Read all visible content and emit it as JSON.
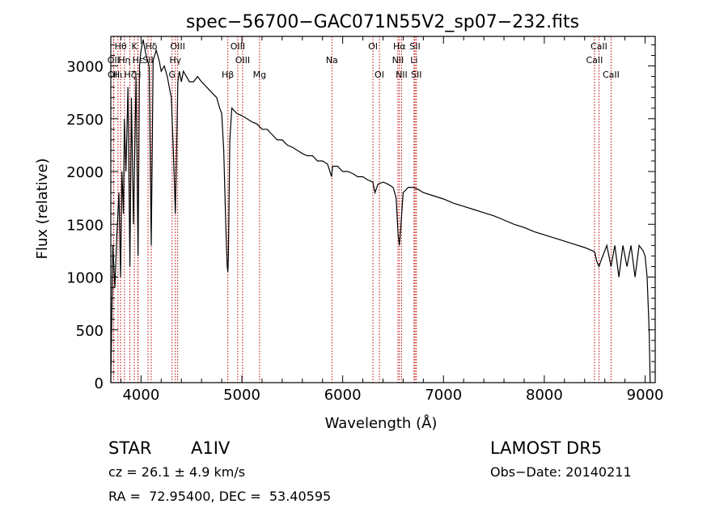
{
  "chart_data": {
    "type": "line",
    "title": "spec−56700−GAC071N55V2_sp07−232.fits",
    "xlabel": "Wavelength (Å)",
    "ylabel": "Flux (relative)",
    "xlim": [
      3700,
      9100
    ],
    "ylim": [
      0,
      3280
    ],
    "x_ticks": [
      4000,
      5000,
      6000,
      7000,
      8000,
      9000
    ],
    "y_ticks": [
      0,
      500,
      1000,
      1500,
      2000,
      2500,
      3000
    ],
    "grid": false,
    "line_color": "#000000",
    "marker_color": "#c00000",
    "series": [
      {
        "x": [
          3700,
          3720,
          3740,
          3760,
          3780,
          3797,
          3810,
          3825,
          3835,
          3850,
          3870,
          3889,
          3905,
          3925,
          3950,
          3970,
          3985,
          4000,
          4020,
          4050,
          4080,
          4101,
          4120,
          4150,
          4180,
          4200,
          4230,
          4260,
          4300,
          4320,
          4340,
          4352,
          4365,
          4380,
          4400,
          4420,
          4450,
          4480,
          4520,
          4560,
          4600,
          4650,
          4700,
          4750,
          4780,
          4800,
          4820,
          4840,
          4855,
          4861,
          4867,
          4880,
          4900,
          4950,
          5000,
          5050,
          5100,
          5150,
          5200,
          5250,
          5300,
          5350,
          5400,
          5450,
          5500,
          5550,
          5600,
          5650,
          5700,
          5750,
          5800,
          5850,
          5890,
          5900,
          5950,
          6000,
          6050,
          6100,
          6150,
          6200,
          6250,
          6300,
          6320,
          6350,
          6400,
          6450,
          6500,
          6530,
          6550,
          6563,
          6575,
          6600,
          6650,
          6700,
          6750,
          6800,
          6900,
          7000,
          7100,
          7200,
          7300,
          7400,
          7500,
          7600,
          7700,
          7800,
          7900,
          8000,
          8100,
          8200,
          8300,
          8400,
          8450,
          8500,
          8520,
          8542,
          8560,
          8600,
          8620,
          8662,
          8700,
          8740,
          8780,
          8820,
          8860,
          8900,
          8940,
          8980,
          9000,
          9020,
          9040,
          9050
        ],
        "y": [
          0,
          1300,
          900,
          1400,
          1800,
          1000,
          2000,
          1600,
          2500,
          2000,
          2800,
          1100,
          2700,
          1500,
          2900,
          1200,
          3000,
          3150,
          3250,
          3100,
          3000,
          1300,
          3050,
          3150,
          3050,
          2950,
          3000,
          2900,
          2700,
          2200,
          1600,
          2200,
          2850,
          2950,
          2850,
          2950,
          2900,
          2850,
          2850,
          2900,
          2850,
          2800,
          2750,
          2700,
          2600,
          2550,
          2200,
          1500,
          1100,
          1050,
          1200,
          2300,
          2600,
          2550,
          2530,
          2500,
          2470,
          2450,
          2400,
          2400,
          2350,
          2300,
          2300,
          2250,
          2230,
          2200,
          2170,
          2150,
          2150,
          2100,
          2100,
          2070,
          1950,
          2050,
          2050,
          2000,
          2000,
          1980,
          1950,
          1950,
          1920,
          1900,
          1800,
          1880,
          1900,
          1880,
          1850,
          1750,
          1400,
          1300,
          1450,
          1800,
          1850,
          1850,
          1830,
          1800,
          1770,
          1740,
          1700,
          1670,
          1640,
          1610,
          1580,
          1540,
          1500,
          1470,
          1430,
          1400,
          1370,
          1340,
          1310,
          1280,
          1260,
          1240,
          1150,
          1100,
          1150,
          1250,
          1300,
          1100,
          1300,
          1000,
          1300,
          1100,
          1300,
          1000,
          1300,
          1250,
          1200,
          1000,
          500,
          0
        ]
      }
    ],
    "line_markers": [
      {
        "label": "Hθ",
        "x": 3797,
        "row": 0
      },
      {
        "label": "K",
        "x": 3934,
        "row": 0
      },
      {
        "label": "Hδ",
        "x": 4101,
        "row": 0
      },
      {
        "label": "OIII",
        "x": 4363,
        "row": 0
      },
      {
        "label": "OIII",
        "x": 4959,
        "row": 0
      },
      {
        "label": "OI",
        "x": 6300,
        "row": 0
      },
      {
        "label": "Hα",
        "x": 6563,
        "row": 0
      },
      {
        "label": "SII",
        "x": 6717,
        "row": 0
      },
      {
        "label": "CaII",
        "x": 8542,
        "row": 0
      },
      {
        "label": "OII",
        "x": 3727,
        "row": 1
      },
      {
        "label": "Hη",
        "x": 3835,
        "row": 1
      },
      {
        "label": "Hε",
        "x": 3970,
        "row": 1
      },
      {
        "label": "SII",
        "x": 4069,
        "row": 1
      },
      {
        "label": "Hγ",
        "x": 4340,
        "row": 1
      },
      {
        "label": "OIII",
        "x": 5007,
        "row": 1
      },
      {
        "label": "Na",
        "x": 5893,
        "row": 1
      },
      {
        "label": "NII",
        "x": 6548,
        "row": 1
      },
      {
        "label": "Li",
        "x": 6708,
        "row": 1
      },
      {
        "label": "CaII",
        "x": 8498,
        "row": 1
      },
      {
        "label": "OII",
        "x": 3729,
        "row": 2
      },
      {
        "label": "Hι",
        "x": 3771,
        "row": 2
      },
      {
        "label": "Hζ",
        "x": 3889,
        "row": 2
      },
      {
        "label": "H",
        "x": 3968,
        "row": 2
      },
      {
        "label": "G",
        "x": 4308,
        "row": 2
      },
      {
        "label": "Hβ",
        "x": 4861,
        "row": 2
      },
      {
        "label": "Mg",
        "x": 5175,
        "row": 2
      },
      {
        "label": "OI",
        "x": 6364,
        "row": 2
      },
      {
        "label": "NII",
        "x": 6584,
        "row": 2
      },
      {
        "label": "SII",
        "x": 6731,
        "row": 2
      },
      {
        "label": "CaII",
        "x": 8662,
        "row": 2
      }
    ]
  },
  "footer": {
    "object_class": "STAR",
    "subclass": "A1IV",
    "survey": "LAMOST DR5",
    "cz": "cz = 26.1 ± 4.9 km/s",
    "obs_date": "Obs−Date: 20140211",
    "coords": "RA =  72.95400, DEC =  53.40595"
  }
}
